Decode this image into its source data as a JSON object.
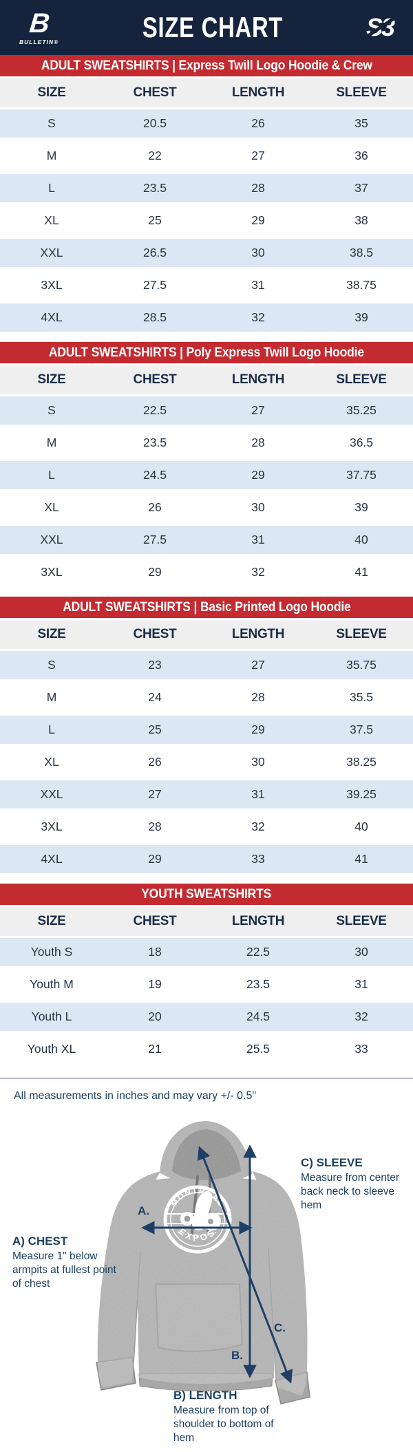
{
  "header": {
    "title": "SIZE CHART",
    "left_logo_letter": "B",
    "left_logo_text": "BULLETIN®",
    "right_logo_text": "S3"
  },
  "colors": {
    "navy": "#16233c",
    "red": "#c32b30",
    "row_blue": "#dbe8f4",
    "thead_gray": "#efefef",
    "annotation_navy": "#1d4060",
    "hoodie_gray": "#a0a0a0"
  },
  "sections": [
    {
      "band": "ADULT SWEATSHIRTS | Express Twill Logo Hoodie & Crew",
      "columns": [
        "SIZE",
        "CHEST",
        "LENGTH",
        "SLEEVE"
      ],
      "rows": [
        [
          "S",
          "20.5",
          "26",
          "35"
        ],
        [
          "M",
          "22",
          "27",
          "36"
        ],
        [
          "L",
          "23.5",
          "28",
          "37"
        ],
        [
          "XL",
          "25",
          "29",
          "38"
        ],
        [
          "XXL",
          "26.5",
          "30",
          "38.5"
        ],
        [
          "3XL",
          "27.5",
          "31",
          "38.75"
        ],
        [
          "4XL",
          "28.5",
          "32",
          "39"
        ]
      ]
    },
    {
      "band": "ADULT SWEATSHIRTS | Poly Express Twill Logo Hoodie",
      "columns": [
        "SIZE",
        "CHEST",
        "LENGTH",
        "SLEEVE"
      ],
      "rows": [
        [
          "S",
          "22.5",
          "27",
          "35.25"
        ],
        [
          "M",
          "23.5",
          "28",
          "36.5"
        ],
        [
          "L",
          "24.5",
          "29",
          "37.75"
        ],
        [
          "XL",
          "26",
          "30",
          "39"
        ],
        [
          "XXL",
          "27.5",
          "31",
          "40"
        ],
        [
          "3XL",
          "29",
          "32",
          "41"
        ]
      ]
    },
    {
      "band": "ADULT SWEATSHIRTS | Basic Printed Logo Hoodie",
      "columns": [
        "SIZE",
        "CHEST",
        "LENGTH",
        "SLEEVE"
      ],
      "rows": [
        [
          "S",
          "23",
          "27",
          "35.75"
        ],
        [
          "M",
          "24",
          "28",
          "35.5"
        ],
        [
          "L",
          "25",
          "29",
          "37.5"
        ],
        [
          "XL",
          "26",
          "30",
          "38.25"
        ],
        [
          "XXL",
          "27",
          "31",
          "39.25"
        ],
        [
          "3XL",
          "28",
          "32",
          "40"
        ],
        [
          "4XL",
          "29",
          "33",
          "41"
        ]
      ]
    },
    {
      "band": "YOUTH SWEATSHIRTS",
      "columns": [
        "SIZE",
        "CHEST",
        "LENGTH",
        "SLEEVE"
      ],
      "rows": [
        [
          "Youth S",
          "18",
          "22.5",
          "30"
        ],
        [
          "Youth M",
          "19",
          "23.5",
          "31"
        ],
        [
          "Youth L",
          "20",
          "24.5",
          "32"
        ],
        [
          "Youth XL",
          "21",
          "25.5",
          "33"
        ]
      ]
    }
  ],
  "note": "All measurements in inches and may vary +/- 0.5\"",
  "diagram": {
    "chest_label": "A) CHEST",
    "chest_desc": "Measure 1\" below armpits at fullest point of chest",
    "length_label": "B) LENGTH",
    "length_desc": "Measure from top of shoulder to bottom of hem",
    "sleeve_label": "C) SLEEVE",
    "sleeve_desc": "Measure from center back neck to sleeve hem",
    "marker_a": "A.",
    "marker_b": "B.",
    "marker_c": "C.",
    "logo_top": "MONTRÉAL",
    "logo_bottom": "EXPOS"
  }
}
